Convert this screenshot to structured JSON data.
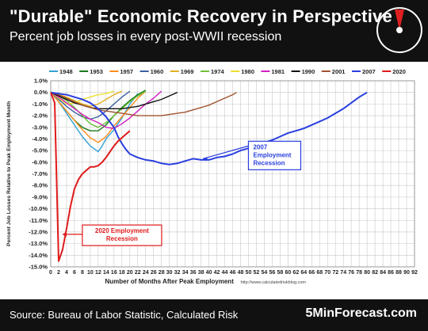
{
  "header": {
    "title": "\"Durable\" Economic Recovery in Perspective",
    "subtitle": "Percent job losses in every post-WWII recession"
  },
  "footer": {
    "source": "Source: Bureau of Labor Statistic, Calculated Risk",
    "brand": "5MinForecast.com"
  },
  "colors": {
    "header_bg": "#111111",
    "gauge_needle": "#e02020"
  },
  "chart_data": {
    "type": "line",
    "title": "",
    "xlabel": "Number of Months After Peak Employment",
    "ylabel": "Percent Job Losses Relative to Peak Employment Month",
    "xlim": [
      0,
      92
    ],
    "ylim": [
      -15,
      1
    ],
    "x_ticks": [
      0,
      2,
      4,
      6,
      8,
      10,
      12,
      14,
      16,
      18,
      20,
      22,
      24,
      26,
      28,
      30,
      32,
      34,
      36,
      38,
      40,
      42,
      44,
      46,
      48,
      50,
      52,
      54,
      56,
      58,
      60,
      62,
      64,
      66,
      68,
      70,
      72,
      74,
      76,
      78,
      80,
      82,
      84,
      86,
      88,
      90,
      92
    ],
    "y_ticks": [
      "1.0%",
      "0.0%",
      "-1.0%",
      "-2.0%",
      "-3.0%",
      "-4.0%",
      "-5.0%",
      "-6.0%",
      "-7.0%",
      "-8.0%",
      "-9.0%",
      "-10.0%",
      "-11.0%",
      "-12.0%",
      "-13.0%",
      "-14.0%",
      "-15.0%"
    ],
    "grid": true,
    "legend_position": "top",
    "watermark": "http://www.calculatedriskblog.com",
    "annotations": [
      {
        "label_line1": "2007",
        "label_line2": "Employment",
        "label_line3": "Recession",
        "series": "2007"
      },
      {
        "label_line1": "2020 Employment",
        "label_line2": "Recession",
        "series": "2020"
      }
    ],
    "series": [
      {
        "name": "1948",
        "color": "#33a1d6",
        "points": [
          [
            0,
            0
          ],
          [
            2,
            -0.8
          ],
          [
            4,
            -1.8
          ],
          [
            6,
            -2.8
          ],
          [
            8,
            -3.8
          ],
          [
            10,
            -4.6
          ],
          [
            12,
            -5.1
          ],
          [
            13,
            -4.6
          ],
          [
            14,
            -4.0
          ],
          [
            16,
            -3.2
          ],
          [
            18,
            -2.2
          ],
          [
            20,
            -1.0
          ],
          [
            22,
            -0.1
          ]
        ]
      },
      {
        "name": "1953",
        "color": "#1a7a1a",
        "points": [
          [
            0,
            0
          ],
          [
            2,
            -0.8
          ],
          [
            4,
            -1.6
          ],
          [
            6,
            -2.4
          ],
          [
            8,
            -3.0
          ],
          [
            10,
            -3.3
          ],
          [
            12,
            -3.3
          ],
          [
            14,
            -2.8
          ],
          [
            16,
            -2.0
          ],
          [
            18,
            -1.3
          ],
          [
            20,
            -0.7
          ],
          [
            22,
            -0.2
          ],
          [
            24,
            0.2
          ]
        ]
      },
      {
        "name": "1957",
        "color": "#ff8c1a",
        "points": [
          [
            0,
            0
          ],
          [
            2,
            -0.8
          ],
          [
            4,
            -1.6
          ],
          [
            6,
            -2.4
          ],
          [
            8,
            -3.2
          ],
          [
            10,
            -3.9
          ],
          [
            12,
            -4.3
          ],
          [
            14,
            -3.8
          ],
          [
            16,
            -2.9
          ],
          [
            18,
            -2.1
          ],
          [
            20,
            -1.3
          ],
          [
            22,
            -0.5
          ],
          [
            24,
            0.1
          ]
        ]
      },
      {
        "name": "1960",
        "color": "#3a5fa0",
        "points": [
          [
            0,
            0
          ],
          [
            2,
            -0.6
          ],
          [
            4,
            -1.2
          ],
          [
            6,
            -1.7
          ],
          [
            8,
            -2.1
          ],
          [
            10,
            -2.3
          ],
          [
            12,
            -2.1
          ],
          [
            14,
            -1.6
          ],
          [
            16,
            -1.0
          ],
          [
            18,
            -0.4
          ],
          [
            20,
            0.1
          ]
        ]
      },
      {
        "name": "1969",
        "color": "#e0b020",
        "points": [
          [
            0,
            0
          ],
          [
            2,
            -0.2
          ],
          [
            4,
            -0.4
          ],
          [
            6,
            -0.7
          ],
          [
            8,
            -1.0
          ],
          [
            10,
            -1.2
          ],
          [
            12,
            -1.0
          ],
          [
            14,
            -0.6
          ],
          [
            16,
            -0.2
          ],
          [
            18,
            0.1
          ]
        ]
      },
      {
        "name": "1974",
        "color": "#6fc03a",
        "points": [
          [
            0,
            0
          ],
          [
            2,
            -0.3
          ],
          [
            4,
            -0.7
          ],
          [
            6,
            -1.3
          ],
          [
            8,
            -2.0
          ],
          [
            10,
            -2.7
          ],
          [
            12,
            -3.0
          ],
          [
            14,
            -2.6
          ],
          [
            16,
            -2.0
          ],
          [
            18,
            -1.4
          ],
          [
            20,
            -0.8
          ],
          [
            22,
            -0.3
          ],
          [
            24,
            0.1
          ]
        ]
      },
      {
        "name": "1980",
        "color": "#ece030",
        "points": [
          [
            0,
            0
          ],
          [
            2,
            -0.5
          ],
          [
            4,
            -1.0
          ],
          [
            6,
            -0.9
          ],
          [
            8,
            -0.6
          ],
          [
            10,
            -0.4
          ],
          [
            12,
            -0.2
          ],
          [
            14,
            -0.1
          ],
          [
            16,
            0.1
          ]
        ]
      },
      {
        "name": "1981",
        "color": "#d020c0",
        "points": [
          [
            0,
            0
          ],
          [
            2,
            -0.4
          ],
          [
            4,
            -0.9
          ],
          [
            6,
            -1.4
          ],
          [
            8,
            -1.9
          ],
          [
            10,
            -2.3
          ],
          [
            12,
            -2.6
          ],
          [
            14,
            -3.0
          ],
          [
            16,
            -3.1
          ],
          [
            18,
            -2.7
          ],
          [
            20,
            -2.2
          ],
          [
            22,
            -1.6
          ],
          [
            24,
            -1.0
          ],
          [
            26,
            -0.5
          ],
          [
            28,
            0.1
          ]
        ]
      },
      {
        "name": "1990",
        "color": "#111111",
        "points": [
          [
            0,
            0
          ],
          [
            2,
            -0.3
          ],
          [
            4,
            -0.6
          ],
          [
            6,
            -0.9
          ],
          [
            8,
            -1.1
          ],
          [
            10,
            -1.3
          ],
          [
            12,
            -1.4
          ],
          [
            14,
            -1.4
          ],
          [
            16,
            -1.4
          ],
          [
            18,
            -1.4
          ],
          [
            20,
            -1.3
          ],
          [
            22,
            -1.2
          ],
          [
            24,
            -1.0
          ],
          [
            26,
            -0.8
          ],
          [
            28,
            -0.6
          ],
          [
            30,
            -0.3
          ],
          [
            32,
            0.0
          ]
        ]
      },
      {
        "name": "2001",
        "color": "#a0522d",
        "points": [
          [
            0,
            0
          ],
          [
            2,
            -0.2
          ],
          [
            4,
            -0.5
          ],
          [
            6,
            -0.8
          ],
          [
            8,
            -1.1
          ],
          [
            10,
            -1.3
          ],
          [
            12,
            -1.5
          ],
          [
            14,
            -1.6
          ],
          [
            16,
            -1.7
          ],
          [
            18,
            -1.8
          ],
          [
            20,
            -1.9
          ],
          [
            22,
            -2.0
          ],
          [
            24,
            -2.0
          ],
          [
            26,
            -2.0
          ],
          [
            28,
            -2.0
          ],
          [
            30,
            -1.9
          ],
          [
            32,
            -1.8
          ],
          [
            34,
            -1.7
          ],
          [
            36,
            -1.5
          ],
          [
            38,
            -1.3
          ],
          [
            40,
            -1.1
          ],
          [
            42,
            -0.8
          ],
          [
            44,
            -0.5
          ],
          [
            46,
            -0.2
          ],
          [
            47,
            0.0
          ]
        ]
      },
      {
        "name": "2007",
        "color": "#2a3fe0",
        "points": [
          [
            0,
            0
          ],
          [
            2,
            -0.1
          ],
          [
            4,
            -0.2
          ],
          [
            6,
            -0.4
          ],
          [
            8,
            -0.6
          ],
          [
            10,
            -0.9
          ],
          [
            12,
            -1.4
          ],
          [
            14,
            -2.1
          ],
          [
            16,
            -3.0
          ],
          [
            17,
            -3.8
          ],
          [
            18,
            -4.4
          ],
          [
            19,
            -4.9
          ],
          [
            20,
            -5.3
          ],
          [
            22,
            -5.6
          ],
          [
            24,
            -5.8
          ],
          [
            26,
            -5.9
          ],
          [
            28,
            -6.1
          ],
          [
            30,
            -6.2
          ],
          [
            32,
            -6.1
          ],
          [
            34,
            -5.9
          ],
          [
            36,
            -5.7
          ],
          [
            38,
            -5.8
          ],
          [
            40,
            -5.8
          ],
          [
            42,
            -5.6
          ],
          [
            44,
            -5.5
          ],
          [
            46,
            -5.3
          ],
          [
            48,
            -5.0
          ],
          [
            50,
            -4.8
          ],
          [
            52,
            -4.6
          ],
          [
            54,
            -4.3
          ],
          [
            56,
            -4.1
          ],
          [
            58,
            -3.8
          ],
          [
            60,
            -3.5
          ],
          [
            62,
            -3.3
          ],
          [
            64,
            -3.1
          ],
          [
            66,
            -2.8
          ],
          [
            68,
            -2.5
          ],
          [
            70,
            -2.2
          ],
          [
            72,
            -1.8
          ],
          [
            74,
            -1.4
          ],
          [
            76,
            -0.9
          ],
          [
            78,
            -0.4
          ],
          [
            80,
            0.0
          ]
        ]
      },
      {
        "name": "2020",
        "color": "#e01a1a",
        "points": [
          [
            0,
            0
          ],
          [
            1,
            -0.9
          ],
          [
            2,
            -14.5
          ],
          [
            3,
            -13.5
          ],
          [
            4,
            -11.7
          ],
          [
            5,
            -9.8
          ],
          [
            6,
            -8.3
          ],
          [
            7,
            -7.5
          ],
          [
            8,
            -7.0
          ],
          [
            9,
            -6.7
          ],
          [
            10,
            -6.4
          ],
          [
            11,
            -6.4
          ],
          [
            12,
            -6.3
          ],
          [
            13,
            -6.0
          ],
          [
            14,
            -5.6
          ],
          [
            15,
            -5.1
          ],
          [
            16,
            -4.6
          ],
          [
            17,
            -4.2
          ],
          [
            18,
            -3.9
          ],
          [
            19,
            -3.6
          ],
          [
            20,
            -3.3
          ]
        ]
      }
    ]
  }
}
